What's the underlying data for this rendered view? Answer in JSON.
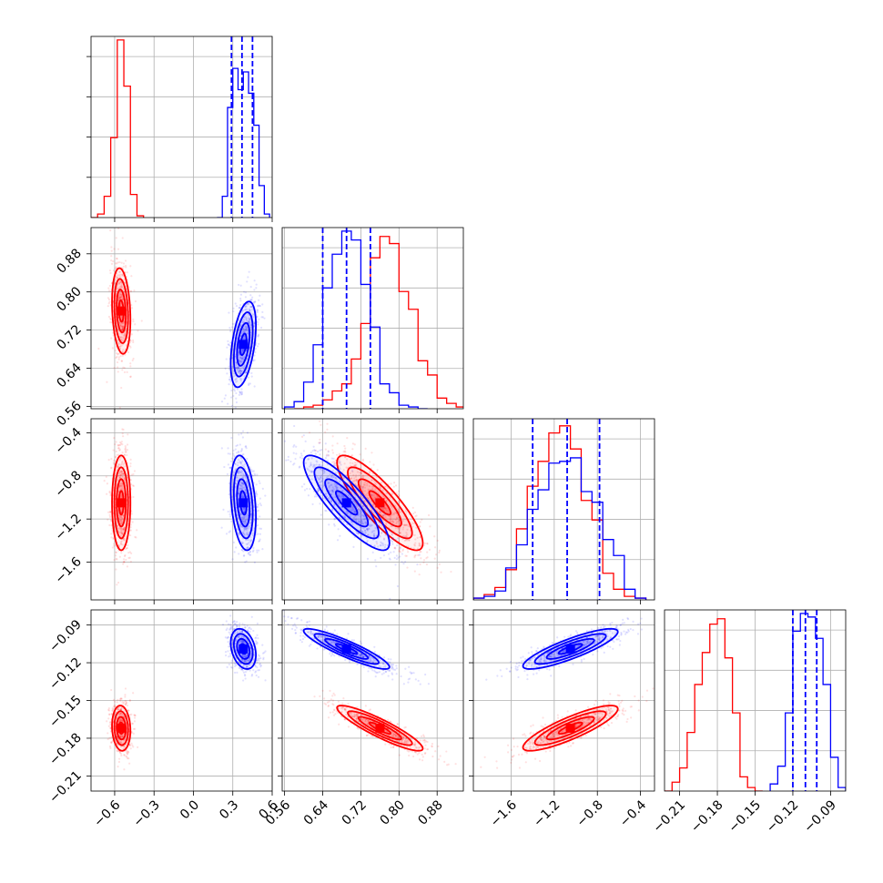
{
  "chart_data": {
    "type": "corner",
    "series": [
      {
        "name": "",
        "color": "#ff0000"
      },
      {
        "name": "",
        "color": "#0000ff"
      }
    ],
    "params": [
      {
        "range": [
          -0.78,
          0.6
        ],
        "ticks": [
          -0.6,
          -0.3,
          0.0,
          0.3,
          0.6
        ],
        "tick_labels": [
          "−0.6",
          "−0.3",
          "0.0",
          "0.3",
          "0.6"
        ]
      },
      {
        "range": [
          0.555,
          0.935
        ],
        "ticks": [
          0.56,
          0.64,
          0.72,
          0.8,
          0.88
        ],
        "tick_labels": [
          "0.56",
          "0.64",
          "0.72",
          "0.80",
          "0.88"
        ]
      },
      {
        "range": [
          -1.95,
          -0.27
        ],
        "ticks": [
          -1.6,
          -1.2,
          -0.8,
          -0.4
        ],
        "tick_labels": [
          "−1.6",
          "−1.2",
          "−0.8",
          "−0.4"
        ]
      },
      {
        "range": [
          -0.222,
          -0.078
        ],
        "ticks": [
          -0.21,
          -0.18,
          -0.15,
          -0.12,
          -0.09
        ],
        "tick_labels": [
          "−0.21",
          "−0.18",
          "−0.15",
          "−0.12",
          "−0.09"
        ]
      }
    ],
    "hist_ymax": [
      1.0,
      1.0,
      1.0,
      1.0
    ],
    "histograms": [
      {
        "red": {
          "edges": [
            -0.78,
            -0.73,
            -0.68,
            -0.63,
            -0.58,
            -0.53,
            -0.48,
            -0.43,
            -0.38
          ],
          "counts": [
            0.0,
            0.02,
            0.12,
            0.45,
            1.0,
            0.74,
            0.13,
            0.01
          ]
        },
        "blue": {
          "edges": [
            0.18,
            0.22,
            0.26,
            0.3,
            0.34,
            0.38,
            0.42,
            0.46,
            0.5,
            0.54,
            0.58
          ],
          "counts": [
            0.0,
            0.12,
            0.62,
            0.84,
            0.72,
            0.82,
            0.7,
            0.52,
            0.18,
            0.02
          ]
        },
        "quantiles": [
          0.29,
          0.37,
          0.45
        ]
      },
      {
        "red": {
          "edges": [
            0.58,
            0.6,
            0.62,
            0.64,
            0.66,
            0.68,
            0.7,
            0.72,
            0.74,
            0.76,
            0.78,
            0.8,
            0.82,
            0.84,
            0.86,
            0.88,
            0.9,
            0.92,
            0.94
          ],
          "counts": [
            0.0,
            0.01,
            0.02,
            0.05,
            0.1,
            0.14,
            0.28,
            0.48,
            0.85,
            0.97,
            0.93,
            0.66,
            0.56,
            0.27,
            0.19,
            0.06,
            0.03,
            0.01
          ]
        },
        "blue": {
          "edges": [
            0.56,
            0.58,
            0.6,
            0.62,
            0.64,
            0.66,
            0.68,
            0.7,
            0.72,
            0.74,
            0.76,
            0.78,
            0.8,
            0.82,
            0.84,
            0.86
          ],
          "counts": [
            0.01,
            0.04,
            0.15,
            0.36,
            0.68,
            0.87,
            1.0,
            0.95,
            0.7,
            0.46,
            0.14,
            0.09,
            0.02,
            0.01,
            0.0
          ]
        },
        "quantiles": [
          0.64,
          0.69,
          0.74
        ]
      },
      {
        "red": {
          "edges": [
            -1.95,
            -1.85,
            -1.75,
            -1.65,
            -1.55,
            -1.45,
            -1.35,
            -1.25,
            -1.15,
            -1.05,
            -0.95,
            -0.85,
            -0.75,
            -0.65,
            -0.55,
            -0.45,
            -0.35
          ],
          "counts": [
            0.01,
            0.03,
            0.07,
            0.17,
            0.4,
            0.64,
            0.78,
            0.94,
            0.98,
            0.85,
            0.56,
            0.45,
            0.15,
            0.06,
            0.02,
            0.01
          ]
        },
        "blue": {
          "edges": [
            -1.95,
            -1.85,
            -1.75,
            -1.65,
            -1.55,
            -1.45,
            -1.35,
            -1.25,
            -1.15,
            -1.05,
            -0.95,
            -0.85,
            -0.75,
            -0.65,
            -0.55,
            -0.45,
            -0.35
          ],
          "counts": [
            0.01,
            0.02,
            0.05,
            0.18,
            0.31,
            0.51,
            0.62,
            0.77,
            0.78,
            0.8,
            0.61,
            0.55,
            0.34,
            0.25,
            0.06,
            0.01
          ]
        },
        "quantiles": [
          -1.4,
          -1.08,
          -0.78
        ]
      },
      {
        "red": {
          "edges": [
            -0.222,
            -0.216,
            -0.21,
            -0.204,
            -0.198,
            -0.192,
            -0.186,
            -0.18,
            -0.174,
            -0.168,
            -0.162,
            -0.156,
            -0.15,
            -0.144
          ],
          "counts": [
            0.0,
            0.05,
            0.13,
            0.33,
            0.6,
            0.78,
            0.94,
            0.97,
            0.75,
            0.44,
            0.08,
            0.02,
            0.0
          ]
        },
        "blue": {
          "edges": [
            -0.138,
            -0.132,
            -0.126,
            -0.12,
            -0.114,
            -0.108,
            -0.102,
            -0.096,
            -0.09,
            -0.084,
            -0.078
          ],
          "counts": [
            0.04,
            0.14,
            0.44,
            0.9,
            1.0,
            0.98,
            0.86,
            0.6,
            0.19,
            0.02
          ]
        },
        "quantiles": [
          -0.12,
          -0.11,
          -0.101
        ]
      }
    ],
    "contours_2d": [
      {
        "i": 1,
        "j": 0,
        "red": {
          "mean": [
            -0.55,
            0.76
          ],
          "sd": [
            0.035,
            0.045
          ],
          "rho": -0.2
        },
        "blue": {
          "mean": [
            0.38,
            0.69
          ],
          "sd": [
            0.048,
            0.045
          ],
          "rho": 0.45
        }
      },
      {
        "i": 2,
        "j": 0,
        "red": {
          "mean": [
            -0.55,
            -1.05
          ],
          "sd": [
            0.035,
            0.22
          ],
          "rho": 0.0
        },
        "blue": {
          "mean": [
            0.38,
            -1.05
          ],
          "sd": [
            0.048,
            0.22
          ],
          "rho": -0.3
        }
      },
      {
        "i": 2,
        "j": 1,
        "red": {
          "mean": [
            0.76,
            -1.05
          ],
          "sd": [
            0.045,
            0.22
          ],
          "rho": -0.85
        },
        "blue": {
          "mean": [
            0.69,
            -1.05
          ],
          "sd": [
            0.045,
            0.22
          ],
          "rho": -0.85
        }
      },
      {
        "i": 3,
        "j": 0,
        "red": {
          "mean": [
            -0.55,
            -0.172
          ],
          "sd": [
            0.035,
            0.009
          ],
          "rho": -0.1
        },
        "blue": {
          "mean": [
            0.38,
            -0.109
          ],
          "sd": [
            0.048,
            0.008
          ],
          "rho": -0.3
        }
      },
      {
        "i": 3,
        "j": 1,
        "red": {
          "mean": [
            0.76,
            -0.172
          ],
          "sd": [
            0.045,
            0.009
          ],
          "rho": -0.9
        },
        "blue": {
          "mean": [
            0.69,
            -0.109
          ],
          "sd": [
            0.045,
            0.008
          ],
          "rho": -0.9
        }
      },
      {
        "i": 3,
        "j": 2,
        "red": {
          "mean": [
            -1.05,
            -0.172
          ],
          "sd": [
            0.22,
            0.009
          ],
          "rho": 0.85
        },
        "blue": {
          "mean": [
            -1.05,
            -0.109
          ],
          "sd": [
            0.22,
            0.008
          ],
          "rho": 0.85
        }
      }
    ],
    "contour_sigma_levels": [
      0.5,
      1.0,
      1.5,
      2.0
    ],
    "grid": true,
    "legend": "none"
  }
}
